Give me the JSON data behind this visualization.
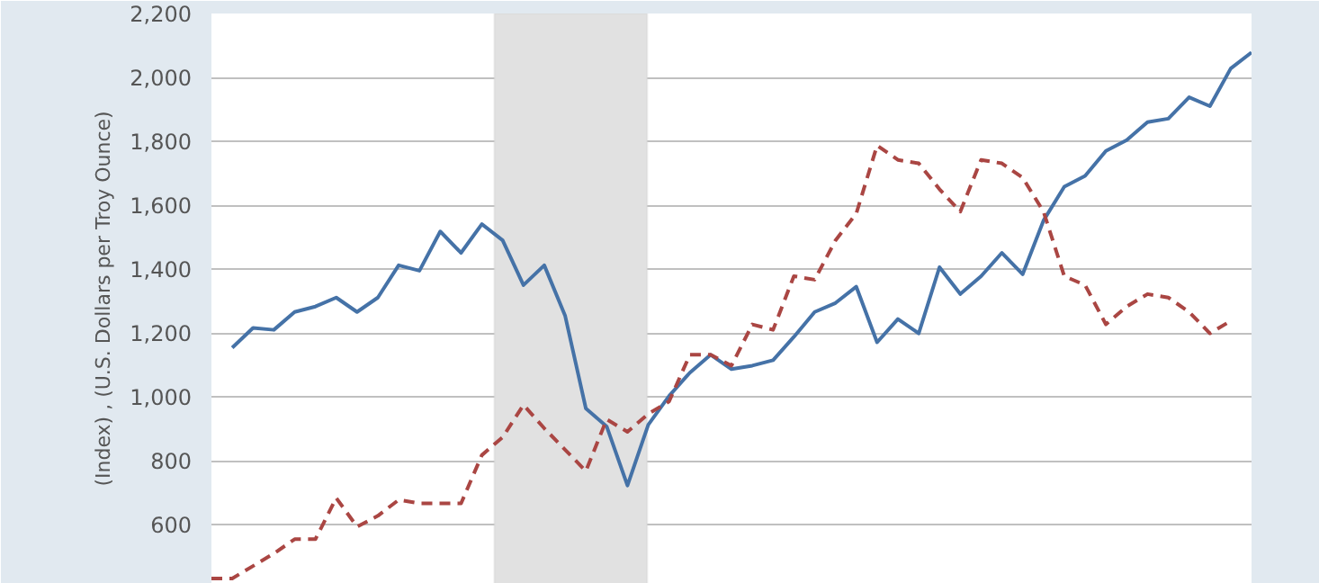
{
  "chart_data": {
    "type": "line",
    "ylabel": "(Index) , (U.S. Dollars per Troy Ounce)",
    "categories": [
      null,
      null,
      null,
      null,
      null,
      null,
      null,
      null,
      null,
      null,
      null,
      null,
      null,
      null,
      null,
      null,
      null,
      null,
      null,
      null,
      null,
      null,
      null,
      null,
      null,
      null,
      null,
      null,
      null,
      null,
      null,
      null,
      null,
      null,
      null,
      null,
      null,
      null,
      null,
      null,
      null,
      null,
      null,
      null,
      null,
      null,
      null,
      null,
      null,
      null,
      null
    ],
    "ylim": [
      415,
      2200
    ],
    "yticks": [
      {
        "value": 600,
        "label": "600"
      },
      {
        "value": 800,
        "label": "800"
      },
      {
        "value": 1000,
        "label": "1,000"
      },
      {
        "value": 1200,
        "label": "1,200"
      },
      {
        "value": 1400,
        "label": "1,400"
      },
      {
        "value": 1600,
        "label": "1,600"
      },
      {
        "value": 1800,
        "label": "1,800"
      },
      {
        "value": 2000,
        "label": "2,000"
      },
      {
        "value": 2200,
        "label": "2,200"
      }
    ],
    "tick_labels": "y",
    "grid": "y",
    "series": [
      {
        "color": "#4572a7",
        "line_style": "solid",
        "values": [
          null,
          1154,
          1216,
          1210,
          1266,
          1283,
          1311,
          1266,
          1311,
          1412,
          1395,
          1518,
          1451,
          1541,
          1490,
          1350,
          1412,
          1255,
          964,
          908,
          723,
          913,
          1003,
          1076,
          1132,
          1087,
          1098,
          1115,
          1188,
          1266,
          1294,
          1345,
          1171,
          1244,
          1199,
          1406,
          1322,
          1378,
          1451,
          1384,
          1552,
          1658,
          1692,
          1770,
          1804,
          1860,
          1871,
          1938,
          1910,
          2028,
          2078
        ]
      },
      {
        "color": "#aa4643",
        "line_style": "dashed",
        "values": [
          432,
          432,
          471,
          510,
          555,
          555,
          684,
          594,
          628,
          678,
          667,
          667,
          667,
          818,
          874,
          975,
          902,
          835,
          768,
          930,
          891,
          947,
          986,
          1132,
          1132,
          1098,
          1227,
          1210,
          1378,
          1367,
          1490,
          1574,
          1787,
          1742,
          1731,
          1650,
          1580,
          1742,
          1731,
          1686,
          1580,
          1378,
          1350,
          1227,
          1283,
          1322,
          1311,
          1266,
          1199,
          1238,
          null
        ]
      }
    ]
  }
}
